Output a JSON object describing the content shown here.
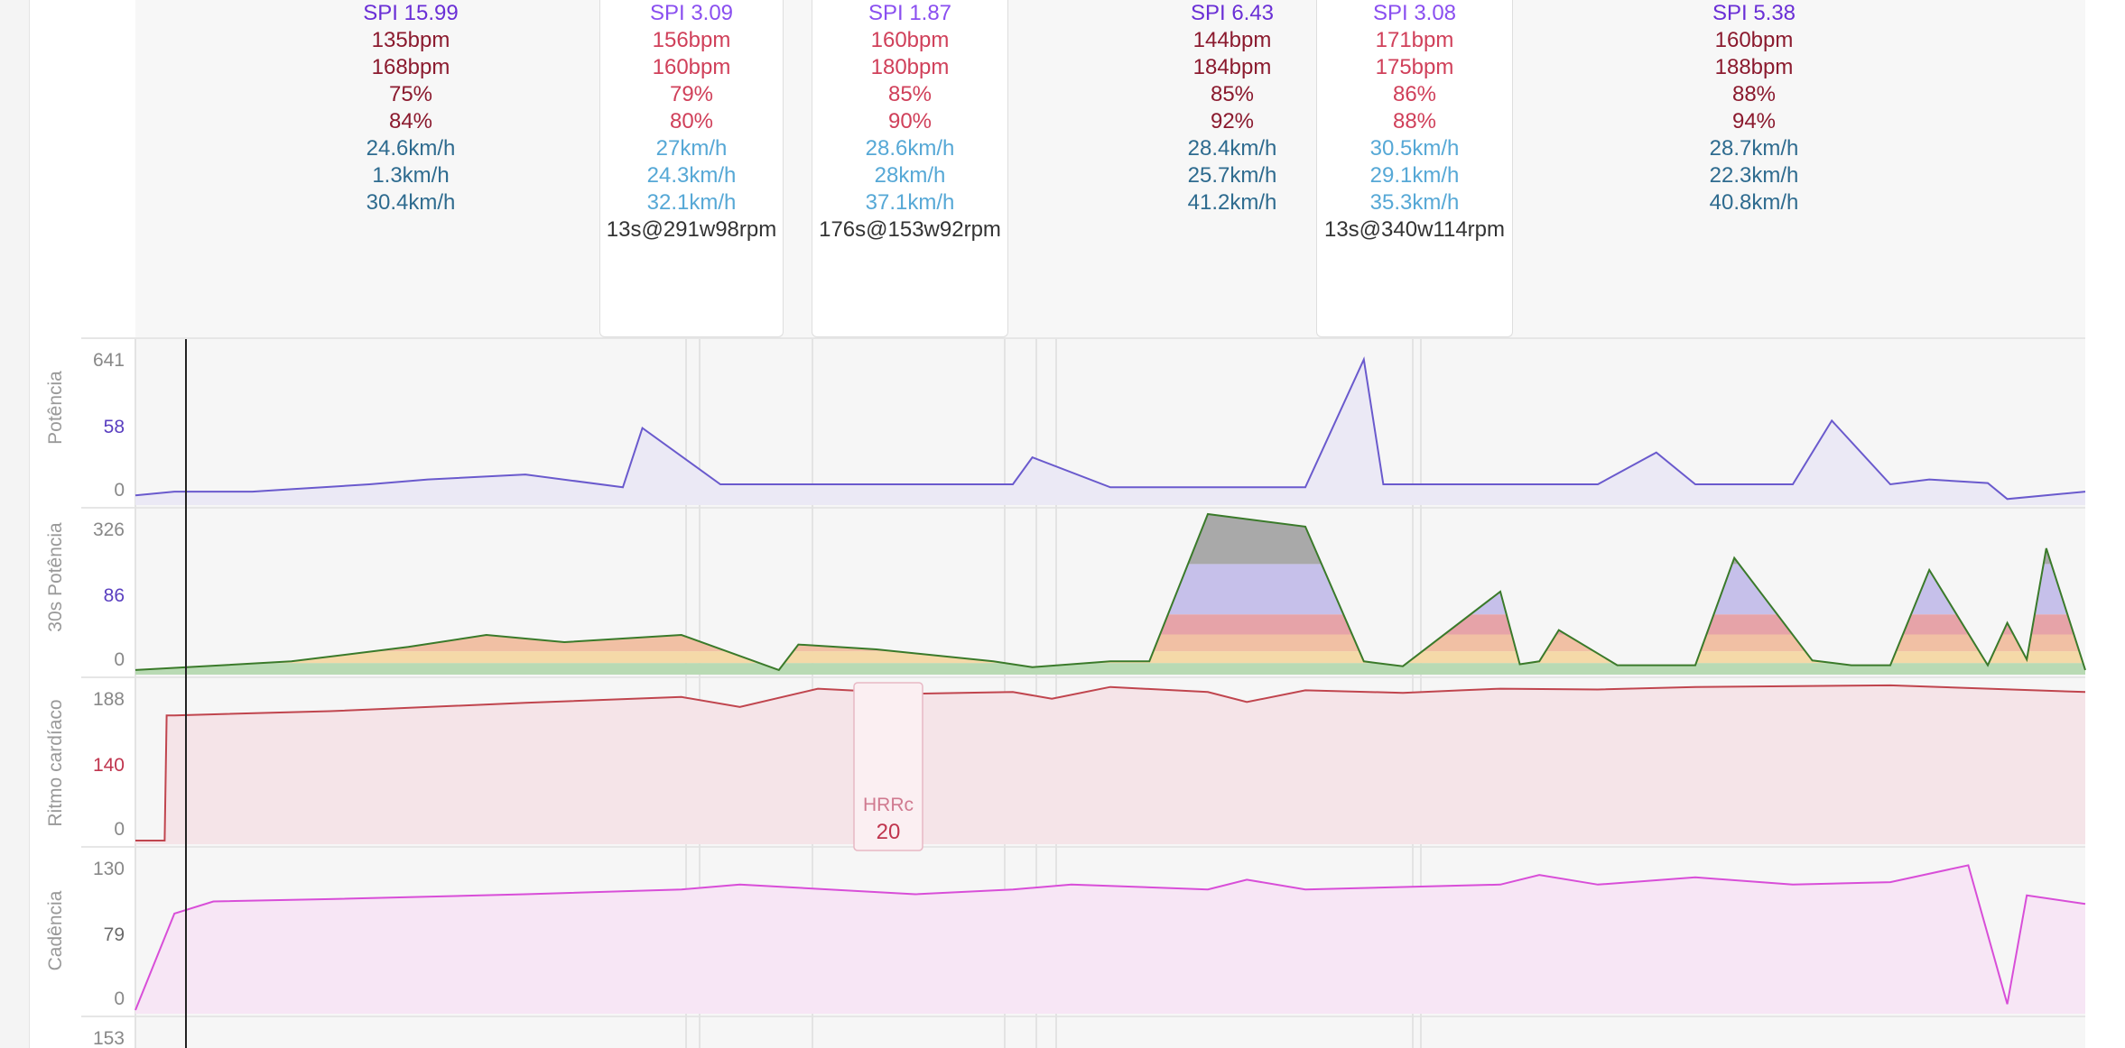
{
  "colors": {
    "spi": "#6a2fd6",
    "spi_light": "#8a4ff0",
    "hr_dark": "#8b1a2e",
    "hr_light": "#d0405a",
    "speed_dark": "#2e6b8f",
    "speed_light": "#56a8d6",
    "text": "#333333",
    "power": "#6a5acd",
    "power_fill": "#ebe9f5",
    "hr": "#c0454e",
    "hr_fill": "#f5e4e8",
    "cadence": "#d84ed8",
    "cadence_fill": "#f7e6f5",
    "axis_text": "#888888",
    "mid_power": "#5a3fc0",
    "mid_hr": "#c0354e",
    "mid_cad": "#6a6a6a"
  },
  "intervals": [
    {
      "spi": "SPI 15.99",
      "hr_avg": "135bpm",
      "hr_max": "168bpm",
      "pct_avg": "75%",
      "pct_max": "84%",
      "spd_avg": "24.6km/h",
      "spd_min": "1.3km/h",
      "spd_max": "30.4km/h",
      "extra": "",
      "selected": false,
      "light": false
    },
    {
      "spi": "SPI 3.09",
      "hr_avg": "156bpm",
      "hr_max": "160bpm",
      "pct_avg": "79%",
      "pct_max": "80%",
      "spd_avg": "27km/h",
      "spd_min": "24.3km/h",
      "spd_max": "32.1km/h",
      "extra": "13s@291w98rpm",
      "selected": true,
      "light": true
    },
    {
      "spi": "SPI 1.87",
      "hr_avg": "160bpm",
      "hr_max": "180bpm",
      "pct_avg": "85%",
      "pct_max": "90%",
      "spd_avg": "28.6km/h",
      "spd_min": "28km/h",
      "spd_max": "37.1km/h",
      "extra": "176s@153w92rpm",
      "selected": true,
      "light": true
    },
    {
      "spi": "SPI 6.43",
      "hr_avg": "144bpm",
      "hr_max": "184bpm",
      "pct_avg": "85%",
      "pct_max": "92%",
      "spd_avg": "28.4km/h",
      "spd_min": "25.7km/h",
      "spd_max": "41.2km/h",
      "extra": "",
      "selected": false,
      "light": false
    },
    {
      "spi": "SPI 3.08",
      "hr_avg": "171bpm",
      "hr_max": "175bpm",
      "pct_avg": "86%",
      "pct_max": "88%",
      "spd_avg": "30.5km/h",
      "spd_min": "29.1km/h",
      "spd_max": "35.3km/h",
      "extra": "13s@340w114rpm",
      "selected": true,
      "light": true
    },
    {
      "spi": "SPI 5.38",
      "hr_avg": "160bpm",
      "hr_max": "188bpm",
      "pct_avg": "88%",
      "pct_max": "94%",
      "spd_avg": "28.7km/h",
      "spd_min": "22.3km/h",
      "spd_max": "40.8km/h",
      "extra": "",
      "selected": false,
      "light": false
    }
  ],
  "chart_data": [
    {
      "type": "line",
      "ylabel": "Potência",
      "ticks": {
        "max": "641",
        "mid": "58",
        "min": "0"
      },
      "ylim": [
        0,
        641
      ],
      "x": [
        0,
        2,
        4,
        6,
        8,
        10,
        12,
        15,
        20,
        25,
        26,
        30,
        35,
        40,
        45,
        46,
        50,
        55,
        58,
        60,
        63,
        64,
        66,
        70,
        75,
        78,
        80,
        85,
        87,
        90,
        92,
        95,
        96,
        100
      ],
      "values": [
        25,
        40,
        40,
        40,
        50,
        60,
        70,
        90,
        110,
        58,
        300,
        70,
        70,
        70,
        70,
        180,
        58,
        58,
        58,
        58,
        580,
        70,
        70,
        70,
        70,
        200,
        70,
        70,
        330,
        70,
        90,
        75,
        10,
        40
      ]
    },
    {
      "type": "area",
      "ylabel": "30s Potência",
      "ticks": {
        "max": "326",
        "mid": "86",
        "min": "0"
      },
      "ylim": [
        0,
        326
      ],
      "x": [
        0,
        8,
        14,
        18,
        22,
        28,
        33,
        34,
        38,
        44,
        46,
        50,
        52,
        55,
        60,
        63,
        65,
        70,
        71,
        72,
        73,
        76,
        78,
        80,
        82,
        86,
        88,
        90,
        92,
        95,
        96,
        97,
        98,
        100
      ],
      "values": [
        2,
        20,
        50,
        75,
        60,
        75,
        2,
        55,
        45,
        20,
        8,
        20,
        20,
        326,
        300,
        20,
        10,
        165,
        14,
        20,
        85,
        12,
        12,
        12,
        235,
        22,
        12,
        12,
        210,
        12,
        100,
        24,
        255,
        2
      ]
    },
    {
      "type": "line",
      "ylabel": "Ritmo cardíaco",
      "ticks": {
        "max": "188",
        "mid": "140",
        "min": "0"
      },
      "ylim": [
        0,
        188
      ],
      "x": [
        0,
        1.5,
        1.6,
        2,
        10,
        20,
        28,
        31,
        35,
        40,
        45,
        47,
        50,
        55,
        57,
        60,
        65,
        68,
        70,
        75,
        80,
        90,
        100
      ],
      "values": [
        0,
        0,
        150,
        150,
        155,
        165,
        172,
        160,
        182,
        176,
        178,
        170,
        184,
        178,
        166,
        180,
        177,
        180,
        182,
        181,
        184,
        186,
        178
      ],
      "annotation": {
        "label": "HRRc",
        "value": "20"
      }
    },
    {
      "type": "area",
      "ylabel": "Cadência",
      "ticks": {
        "max": "130",
        "mid": "79",
        "min": "0"
      },
      "ylim": [
        0,
        130
      ],
      "x": [
        0,
        2,
        4,
        10,
        20,
        28,
        31,
        40,
        45,
        48,
        55,
        57,
        60,
        65,
        70,
        72,
        75,
        80,
        85,
        90,
        94,
        96,
        97,
        100
      ],
      "values": [
        0,
        80,
        90,
        92,
        96,
        100,
        104,
        96,
        100,
        104,
        100,
        108,
        100,
        102,
        104,
        112,
        104,
        110,
        104,
        106,
        120,
        5,
        95,
        88
      ]
    },
    {
      "type": "line",
      "ylabel": "",
      "ticks": {
        "max": "153"
      },
      "x": [],
      "values": []
    }
  ]
}
